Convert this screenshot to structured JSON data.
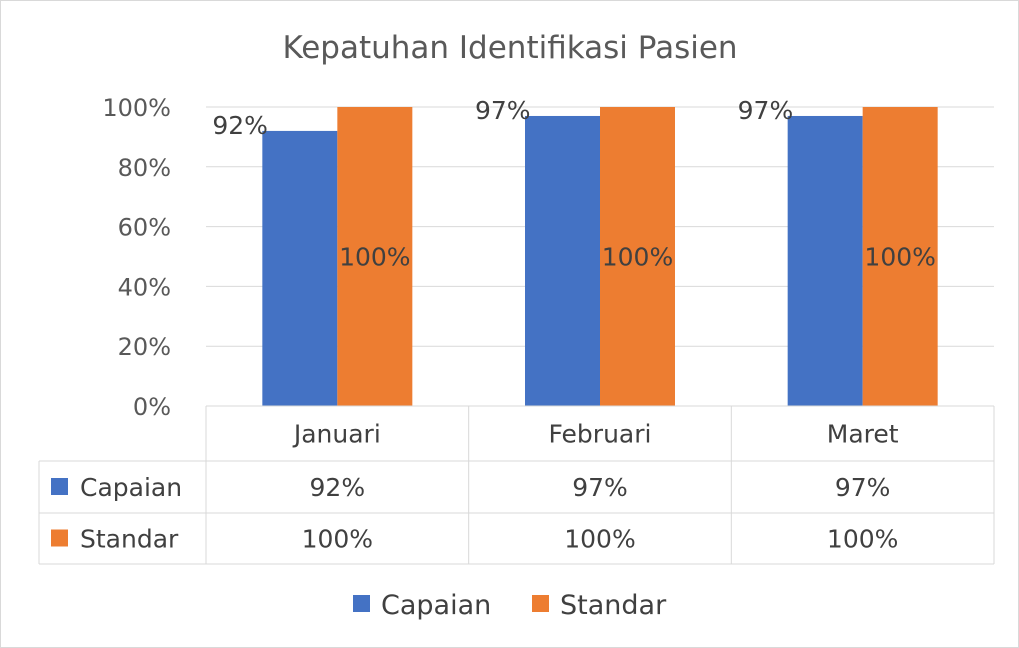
{
  "chart_data": {
    "type": "bar",
    "title": "Kepatuhan Identifikasi Pasien",
    "categories": [
      "Januari",
      "Februari",
      "Maret"
    ],
    "series": [
      {
        "name": "Capaian",
        "values": [
          92,
          97,
          97
        ],
        "labels": [
          "92%",
          "97%",
          "97%"
        ],
        "color": "#4472c4"
      },
      {
        "name": "Standar",
        "values": [
          100,
          100,
          100
        ],
        "labels": [
          "100%",
          "100%",
          "100%"
        ],
        "color": "#ed7d31"
      }
    ],
    "ylim": [
      0,
      100
    ],
    "yticks": [
      "0%",
      "20%",
      "40%",
      "60%",
      "80%",
      "100%"
    ],
    "xlabel": "",
    "ylabel": "",
    "grid": true,
    "data_table": true,
    "legend": "bottom"
  }
}
